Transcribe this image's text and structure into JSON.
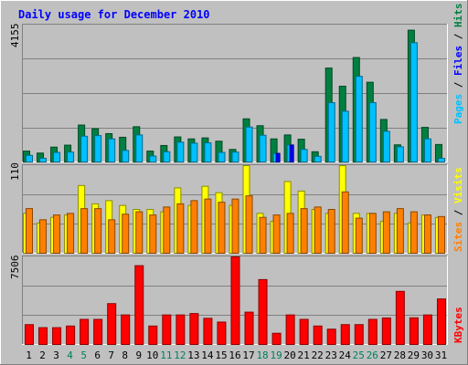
{
  "chart_data": {
    "type": "bar",
    "title": "Daily usage for December 2010",
    "days": [
      "1",
      "2",
      "3",
      "4",
      "5",
      "6",
      "7",
      "8",
      "9",
      "10",
      "11",
      "12",
      "13",
      "14",
      "15",
      "16",
      "17",
      "18",
      "19",
      "20",
      "21",
      "22",
      "23",
      "24",
      "25",
      "26",
      "27",
      "28",
      "29",
      "30",
      "31"
    ],
    "weekend_days": [
      "4",
      "5",
      "11",
      "12",
      "18",
      "19",
      "25",
      "26"
    ],
    "hits_panel": {
      "ymax_label": "4155",
      "ymax": 4155,
      "axis_label": {
        "pages": "Pages",
        "files": "Files",
        "hits": "Hits",
        "sep": " / "
      },
      "series": [
        {
          "name": "Hits",
          "color": "#008040",
          "values": [
            330,
            270,
            450,
            510,
            1120,
            1010,
            860,
            750,
            1070,
            330,
            500,
            760,
            700,
            730,
            630,
            380,
            1310,
            1100,
            700,
            820,
            690,
            310,
            2850,
            2300,
            3170,
            2420,
            1290,
            520,
            4000,
            1050,
            530
          ]
        },
        {
          "name": "Files",
          "color": "#0080c0",
          "values": [
            200,
            110,
            290,
            300,
            780,
            800,
            700,
            350,
            820,
            180,
            310,
            600,
            570,
            580,
            290,
            300,
            1060,
            810,
            260,
            520,
            380,
            170,
            1800,
            1540,
            2600,
            1800,
            930,
            460,
            3620,
            700,
            110
          ]
        },
        {
          "name": "Pages",
          "color": "#0000ff",
          "values": [
            0,
            0,
            0,
            0,
            0,
            0,
            0,
            0,
            0,
            0,
            0,
            0,
            0,
            0,
            0,
            0,
            0,
            0,
            260,
            510,
            0,
            0,
            0,
            0,
            0,
            0,
            0,
            0,
            0,
            0,
            0
          ]
        }
      ]
    },
    "sites_panel": {
      "ymax_label": "110",
      "ymax": 110,
      "axis_label": {
        "sites": "Sites",
        "visits": "Visits",
        "sep": " / "
      },
      "series": [
        {
          "name": "Visits",
          "color": "#ffff00",
          "values": [
            50,
            38,
            45,
            48,
            85,
            62,
            66,
            60,
            55,
            55,
            52,
            82,
            60,
            84,
            76,
            60,
            110,
            50,
            40,
            90,
            78,
            55,
            50,
            110,
            50,
            50,
            40,
            50,
            38,
            48,
            45
          ]
        },
        {
          "name": "Sites",
          "color": "#ff8000",
          "values": [
            56,
            42,
            48,
            50,
            56,
            56,
            42,
            49,
            52,
            48,
            58,
            62,
            66,
            68,
            64,
            68,
            72,
            45,
            48,
            50,
            56,
            58,
            55,
            77,
            44,
            50,
            52,
            56,
            52,
            48,
            46
          ]
        }
      ]
    },
    "kbytes_panel": {
      "ymax_label": "7506",
      "ymax": 7506,
      "axis_label": {
        "kbytes": "KBytes"
      },
      "series": [
        {
          "name": "KBytes",
          "color": "#ff0000",
          "values": [
            1700,
            1440,
            1440,
            1580,
            2150,
            2150,
            3500,
            2530,
            6750,
            1580,
            2530,
            2530,
            2650,
            2240,
            1920,
            7506,
            2770,
            5560,
            960,
            2530,
            2150,
            1580,
            1310,
            1700,
            1700,
            2150,
            2270,
            4550,
            2280,
            2530,
            3900
          ]
        }
      ]
    },
    "colors": {
      "background": "#c0c0c0",
      "plot_area": "#c0c0c0",
      "title_text": "#0000ff",
      "weekday_label": "#000000",
      "weekend_label": "#00805c",
      "gridline": "#808080"
    }
  }
}
